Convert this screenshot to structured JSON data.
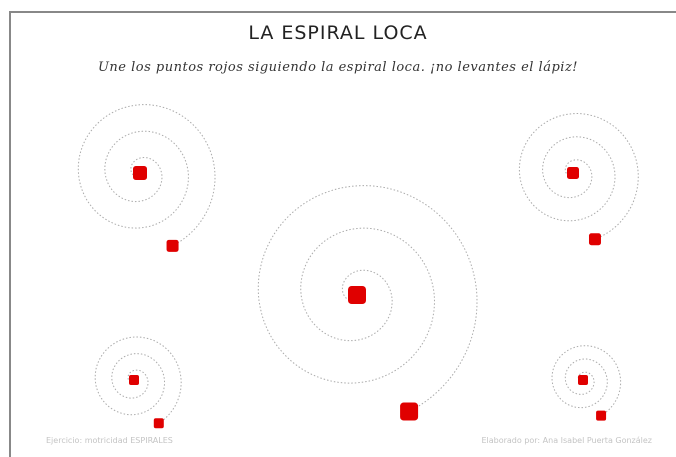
{
  "header": {
    "title": "LA ESPIRAL LOCA",
    "instruction": "Une los puntos rojos siguiendo la espiral loca. ¡no levantes el lápiz!"
  },
  "footer": {
    "left": "Ejercicio: motricidad ESPIRALES",
    "right": "Elaborado por: Ana Isabel Puerta González"
  }
}
